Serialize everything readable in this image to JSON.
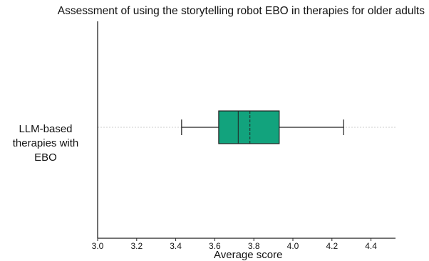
{
  "chart_data": {
    "type": "boxplot",
    "title": "Assessment of using the storytelling robot EBO in therapies for older adults",
    "xlabel": "Average score",
    "ylabel": "",
    "orientation": "horizontal",
    "category_label": "LLM-based therapies with EBO",
    "x_ticks": [
      "3.0",
      "3.2",
      "3.4",
      "3.6",
      "3.8",
      "4.0",
      "4.2",
      "4.4"
    ],
    "xlim": [
      3.0,
      4.5
    ],
    "grid": false,
    "box": {
      "whisker_low": 3.43,
      "q1": 3.62,
      "median": 3.72,
      "mean": 3.78,
      "q3": 3.93,
      "whisker_high": 4.26
    },
    "colors": {
      "box_fill": "#12a37d",
      "line": "#222222",
      "guide": "#cccccc"
    }
  }
}
